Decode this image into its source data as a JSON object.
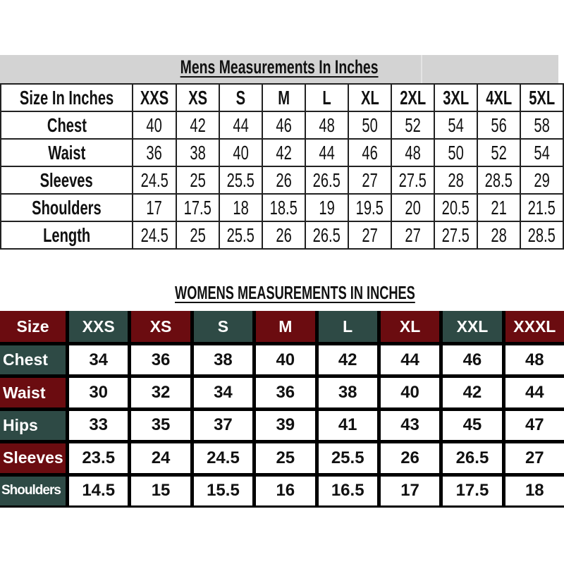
{
  "colors": {
    "red": "#6b0c10",
    "green": "#2e4a45",
    "grey_band": "#d3d3d3"
  },
  "mens": {
    "title": "Mens Measurements In Inches",
    "header_label": "Size In Inches",
    "sizes": [
      "XXS",
      "XS",
      "S",
      "M",
      "L",
      "XL",
      "2XL",
      "3XL",
      "4XL",
      "5XL"
    ],
    "rows": [
      {
        "label": "Chest",
        "values": [
          "40",
          "42",
          "44",
          "46",
          "48",
          "50",
          "52",
          "54",
          "56",
          "58"
        ]
      },
      {
        "label": "Waist",
        "values": [
          "36",
          "38",
          "40",
          "42",
          "44",
          "46",
          "48",
          "50",
          "52",
          "54"
        ]
      },
      {
        "label": "Sleeves",
        "values": [
          "24.5",
          "25",
          "25.5",
          "26",
          "26.5",
          "27",
          "27.5",
          "28",
          "28.5",
          "29"
        ]
      },
      {
        "label": "Shoulders",
        "values": [
          "17",
          "17.5",
          "18",
          "18.5",
          "19",
          "19.5",
          "20",
          "20.5",
          "21",
          "21.5"
        ]
      },
      {
        "label": "Length",
        "values": [
          "24.5",
          "25",
          "25.5",
          "26",
          "26.5",
          "27",
          "27",
          "27.5",
          "28",
          "28.5"
        ]
      }
    ]
  },
  "womens": {
    "title": "WOMENS MEASUREMENTS IN INCHES",
    "header_label": "Size",
    "sizes": [
      "XXS",
      "XS",
      "S",
      "M",
      "L",
      "XL",
      "XXL",
      "XXXL"
    ],
    "rows": [
      {
        "label": "Chest",
        "values": [
          "34",
          "36",
          "38",
          "40",
          "42",
          "44",
          "46",
          "48"
        ]
      },
      {
        "label": "Waist",
        "values": [
          "30",
          "32",
          "34",
          "36",
          "38",
          "40",
          "42",
          "44"
        ]
      },
      {
        "label": "Hips",
        "values": [
          "33",
          "35",
          "37",
          "39",
          "41",
          "43",
          "45",
          "47"
        ]
      },
      {
        "label": "Sleeves",
        "values": [
          "23.5",
          "24",
          "24.5",
          "25",
          "25.5",
          "26",
          "26.5",
          "27"
        ]
      },
      {
        "label": "Shoulders",
        "values": [
          "14.5",
          "15",
          "15.5",
          "16",
          "16.5",
          "17",
          "17.5",
          "18"
        ]
      }
    ]
  }
}
